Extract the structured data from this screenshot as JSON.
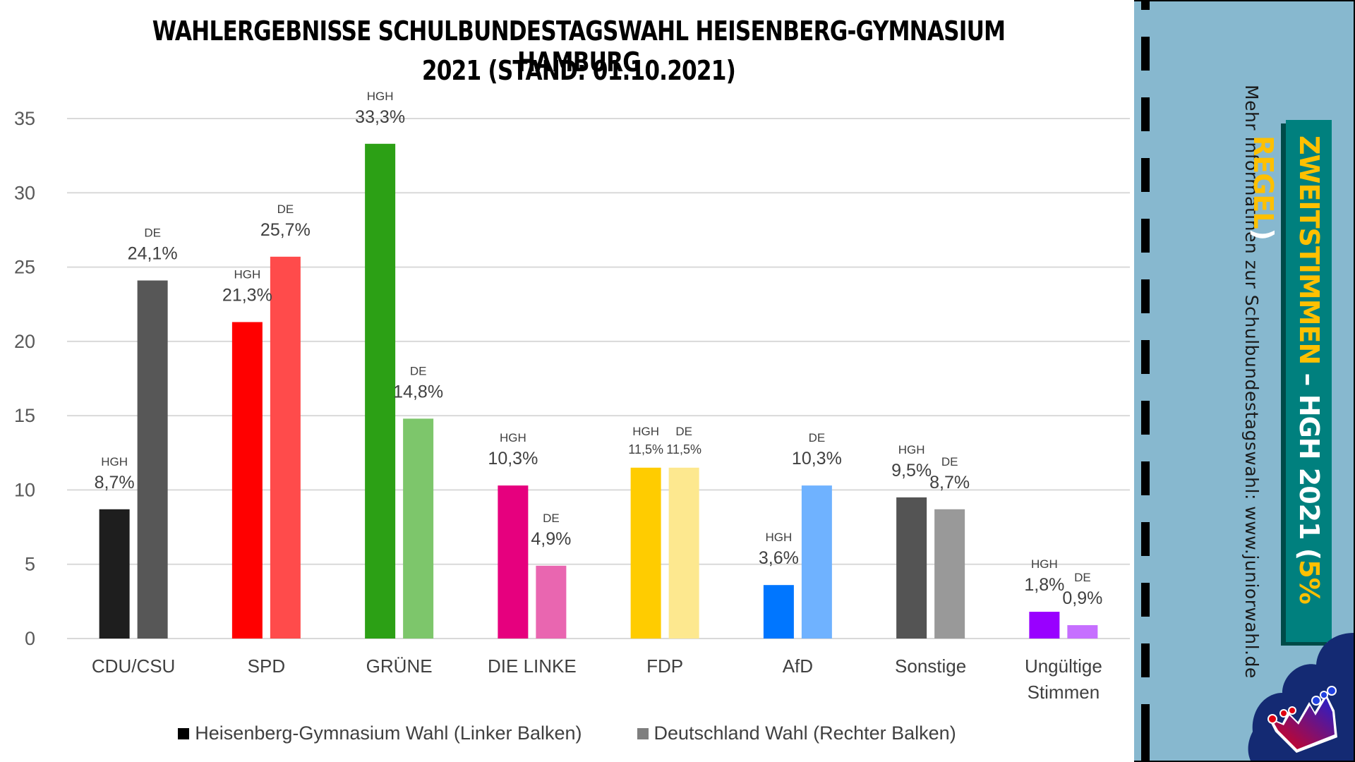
{
  "title_line1": "WAHLERGEBNISSE SCHULBUNDESTAGSWAHL HEISENBERG-GYMNASIUM HAMBURG",
  "title_line2": "2021 (STAND: 01.10.2021)",
  "legend": [
    {
      "label": "Heisenberg-Gymnasium Wahl (Linker Balken)",
      "color": "#000000"
    },
    {
      "label": "Deutschland Wahl (Rechter Balken)",
      "color": "#7f7f7f"
    }
  ],
  "side_panel": {
    "info_text": "Mehr Informatinen zur Schulbundestagswahl: www.juniorwahl.de",
    "banner_part1": "ZWEITSTIMMEN",
    "banner_part2": " – HGH 2021 (",
    "banner_part3": "5% REGEL",
    "banner_part4": ")",
    "background_color": "#87B8CF",
    "banner_color": "#00807E",
    "accent_color": "#FFC000",
    "logo": "juniorwahl-crown-logo"
  },
  "chart_data": {
    "type": "bar",
    "title": "WAHLERGEBNISSE SCHULBUNDESTAGSWAHL HEISENBERG-GYMNASIUM HAMBURG 2021 (STAND: 01.10.2021)",
    "xlabel": "",
    "ylabel": "",
    "ylim": [
      0,
      35
    ],
    "yticks": [
      0,
      5,
      10,
      15,
      20,
      25,
      30,
      35
    ],
    "grid": true,
    "legend_position": "bottom",
    "categories": [
      "CDU/CSU",
      "SPD",
      "GRÜNE",
      "DIE LINKE",
      "FDP",
      "AfD",
      "Sonstige",
      "Ungültige Stimmen"
    ],
    "category_lines": [
      [
        "CDU/CSU"
      ],
      [
        "SPD"
      ],
      [
        "GRÜNE"
      ],
      [
        "DIE LINKE"
      ],
      [
        "FDP"
      ],
      [
        "AfD"
      ],
      [
        "Sonstige"
      ],
      [
        "Ungültige",
        "Stimmen"
      ]
    ],
    "series": [
      {
        "name": "Heisenberg-Gymnasium Wahl (Linker Balken)",
        "short": "HGH",
        "values": [
          8.7,
          21.3,
          33.3,
          10.3,
          11.5,
          3.6,
          9.5,
          1.8
        ],
        "labels": [
          "8,7%",
          "21,3%",
          "33,3%",
          "10,3%",
          "11,5%",
          "3,6%",
          "9,5%",
          "1,8%"
        ],
        "colors": [
          "#1e1e1e",
          "#ff0000",
          "#2ca015",
          "#e6007e",
          "#ffcc00",
          "#0076ff",
          "#545454",
          "#9900ff"
        ]
      },
      {
        "name": "Deutschland Wahl (Rechter Balken)",
        "short": "DE",
        "values": [
          24.1,
          25.7,
          14.8,
          4.9,
          11.5,
          10.3,
          8.7,
          0.9
        ],
        "labels": [
          "24,1%",
          "25,7%",
          "14,8%",
          "4,9%",
          "11,5%",
          "10,3%",
          "8,7%",
          "0,9%"
        ],
        "colors": [
          "#575757",
          "#ff4b4b",
          "#7dc66b",
          "#e966b0",
          "#fde88f",
          "#6fb2ff",
          "#999999",
          "#c66fff"
        ]
      }
    ]
  }
}
